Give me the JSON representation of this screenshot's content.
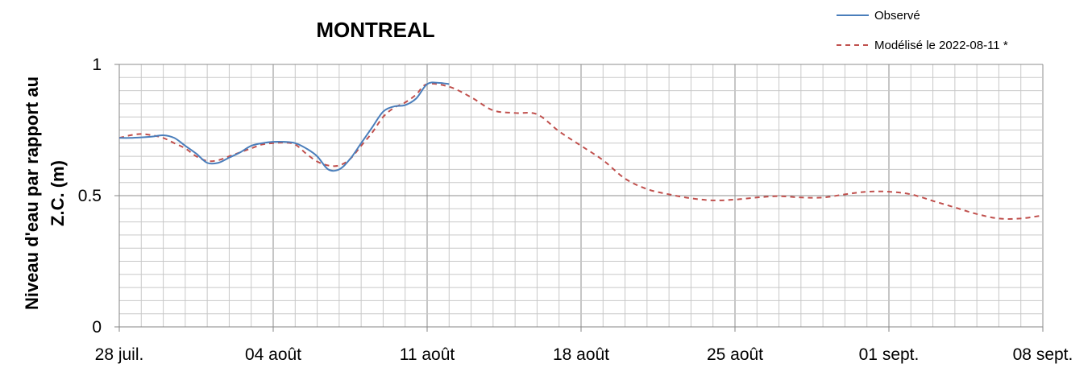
{
  "chart_data": {
    "type": "line",
    "title": "MONTREAL",
    "ylabel_lines": [
      "Niveau d'eau par rapport au",
      "Z.C. (m)"
    ],
    "xlabel": "",
    "x_start_label": "28 juil.",
    "x_tick_labels": [
      "28 juil.",
      "04 août",
      "11 août",
      "18 août",
      "25 août",
      "01 sept.",
      "08 sept."
    ],
    "xlim_days": [
      0,
      42
    ],
    "ylim": [
      0,
      1
    ],
    "y_tick_values": [
      0,
      0.5,
      1
    ],
    "y_tick_labels": [
      "0",
      "0.5",
      "1"
    ],
    "grid": true,
    "legend_position": "top-right",
    "series": [
      {
        "name": "Observé",
        "color": "#4a7ebb",
        "dash": "solid",
        "x": [
          0,
          0.5,
          1,
          1.5,
          2,
          2.5,
          3,
          3.5,
          4,
          4.5,
          5,
          5.5,
          6,
          6.5,
          7,
          7.5,
          8,
          8.5,
          9,
          9.5,
          10,
          10.5,
          11,
          11.5,
          12,
          12.5,
          13,
          13.5,
          14,
          14.5,
          15
        ],
        "y": [
          0.72,
          0.72,
          0.722,
          0.725,
          0.73,
          0.72,
          0.69,
          0.66,
          0.625,
          0.625,
          0.645,
          0.665,
          0.69,
          0.7,
          0.705,
          0.705,
          0.7,
          0.68,
          0.65,
          0.6,
          0.6,
          0.64,
          0.7,
          0.76,
          0.82,
          0.84,
          0.845,
          0.87,
          0.925,
          0.93,
          0.925
        ]
      },
      {
        "name": "Modélisé le 2022-08-11 *",
        "color": "#c0504d",
        "dash": "dashed",
        "x": [
          0,
          0.5,
          1,
          1.5,
          2,
          2.5,
          3,
          3.5,
          4,
          4.5,
          5,
          5.5,
          6,
          6.5,
          7,
          7.5,
          8,
          8.5,
          9,
          9.5,
          10,
          10.5,
          11,
          11.5,
          12,
          12.5,
          13,
          13.5,
          14,
          15,
          16,
          17,
          18,
          19,
          20,
          21,
          22,
          23,
          24,
          25,
          26,
          27,
          28,
          29,
          30,
          31,
          32,
          33,
          34,
          35,
          36,
          37,
          38,
          39,
          40,
          41,
          42
        ],
        "y": [
          0.72,
          0.73,
          0.735,
          0.73,
          0.72,
          0.7,
          0.68,
          0.65,
          0.632,
          0.635,
          0.65,
          0.665,
          0.68,
          0.695,
          0.7,
          0.702,
          0.695,
          0.66,
          0.63,
          0.615,
          0.615,
          0.64,
          0.69,
          0.74,
          0.8,
          0.835,
          0.855,
          0.885,
          0.925,
          0.915,
          0.875,
          0.825,
          0.815,
          0.81,
          0.745,
          0.69,
          0.635,
          0.565,
          0.525,
          0.505,
          0.49,
          0.482,
          0.485,
          0.493,
          0.498,
          0.493,
          0.493,
          0.505,
          0.515,
          0.515,
          0.505,
          0.48,
          0.455,
          0.43,
          0.413,
          0.413,
          0.425
        ]
      }
    ]
  }
}
